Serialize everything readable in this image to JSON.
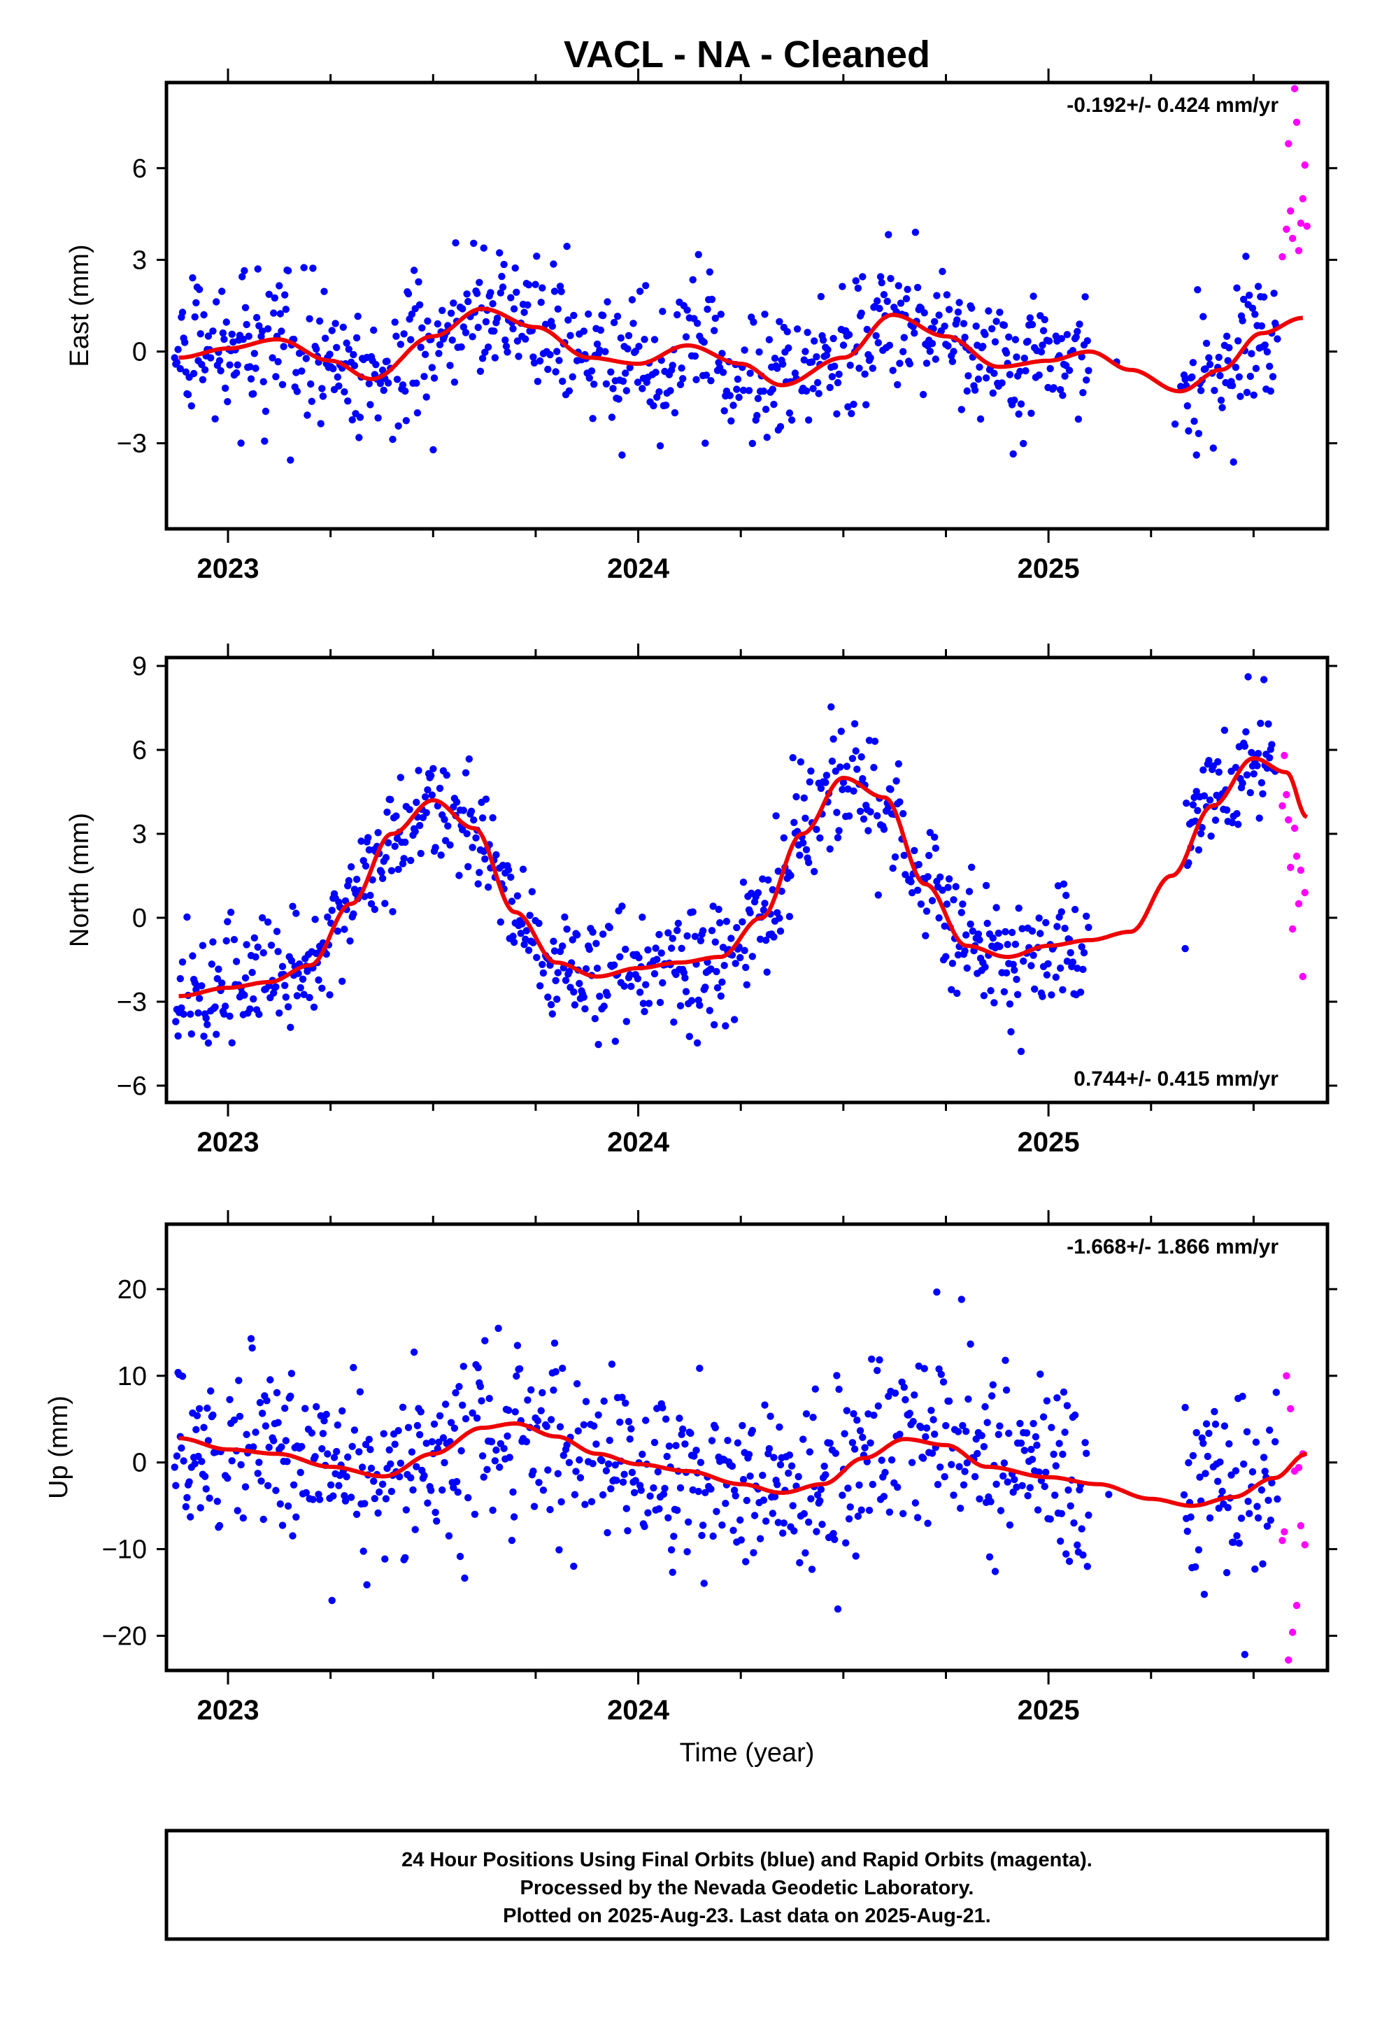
{
  "title": "VACL  - NA - Cleaned",
  "footer": {
    "lines": [
      "24 Hour Positions Using Final Orbits (blue) and Rapid Orbits (magenta).",
      "Processed by the Nevada Geodetic Laboratory.",
      "Plotted on 2025-Aug-23. Last data on 2025-Aug-21."
    ]
  },
  "colors": {
    "final": "#0000ff",
    "rapid": "#ff00ff",
    "fit": "#ee0000",
    "frame": "#000000"
  },
  "chart_data": [
    {
      "type": "scatter",
      "ylabel": "East (mm)",
      "xlabel": "",
      "rate_label": "-0.192+/- 0.424 mm/yr",
      "rate_position": "top-right",
      "xlim": [
        2022.85,
        2025.68
      ],
      "ylim": [
        -5.8,
        8.8
      ],
      "yticks": [
        -3,
        0,
        3,
        6
      ],
      "xticks": [
        2023,
        2024,
        2025
      ],
      "xtick_labels": [
        "2023",
        "2024",
        "2025"
      ],
      "fit": {
        "x": [
          2022.88,
          2023.0,
          2023.12,
          2023.25,
          2023.35,
          2023.5,
          2023.62,
          2023.75,
          2023.88,
          2024.0,
          2024.12,
          2024.25,
          2024.35,
          2024.5,
          2024.62,
          2024.75,
          2024.88,
          2025.0,
          2025.1,
          2025.2,
          2025.32,
          2025.42,
          2025.52,
          2025.62
        ],
        "y": [
          -0.2,
          0.1,
          0.4,
          -0.3,
          -0.9,
          0.5,
          1.4,
          0.8,
          -0.2,
          -0.4,
          0.2,
          -0.4,
          -1.1,
          -0.2,
          1.2,
          0.5,
          -0.5,
          -0.3,
          0.0,
          -0.6,
          -1.3,
          -0.6,
          0.6,
          1.1
        ]
      },
      "noise_sd": 1.1,
      "rapid": {
        "x": [
          2025.57,
          2025.58,
          2025.585,
          2025.59,
          2025.595,
          2025.6,
          2025.605,
          2025.61,
          2025.615,
          2025.62,
          2025.625,
          2025.63
        ],
        "y": [
          3.1,
          4.0,
          6.8,
          4.6,
          3.7,
          8.6,
          7.5,
          3.3,
          4.2,
          5.0,
          6.1,
          4.1
        ]
      }
    },
    {
      "type": "scatter",
      "ylabel": "North (mm)",
      "xlabel": "",
      "rate_label": "0.744+/- 0.415 mm/yr",
      "rate_position": "bottom-right",
      "xlim": [
        2022.85,
        2025.68
      ],
      "ylim": [
        -6.6,
        9.3
      ],
      "yticks": [
        -6,
        -3,
        0,
        3,
        6,
        9
      ],
      "xticks": [
        2023,
        2024,
        2025
      ],
      "xtick_labels": [
        "2023",
        "2024",
        "2025"
      ],
      "fit": {
        "x": [
          2022.88,
          2023.0,
          2023.1,
          2023.2,
          2023.3,
          2023.4,
          2023.5,
          2023.6,
          2023.7,
          2023.8,
          2023.9,
          2024.0,
          2024.1,
          2024.2,
          2024.3,
          2024.4,
          2024.5,
          2024.6,
          2024.7,
          2024.8,
          2024.9,
          2025.0,
          2025.1,
          2025.2,
          2025.3,
          2025.4,
          2025.5,
          2025.58,
          2025.63
        ],
        "y": [
          -2.8,
          -2.5,
          -2.3,
          -1.7,
          0.5,
          3.0,
          4.2,
          3.2,
          0.2,
          -1.6,
          -2.1,
          -1.8,
          -1.6,
          -1.4,
          0.0,
          3.0,
          5.0,
          4.3,
          1.2,
          -1.0,
          -1.4,
          -1.0,
          -0.8,
          -0.5,
          1.5,
          4.0,
          5.7,
          5.2,
          3.6
        ]
      },
      "noise_sd": 1.1,
      "rapid": {
        "x": [
          2025.57,
          2025.575,
          2025.58,
          2025.585,
          2025.59,
          2025.595,
          2025.6,
          2025.605,
          2025.61,
          2025.615,
          2025.62,
          2025.625
        ],
        "y": [
          4.0,
          5.8,
          4.4,
          3.5,
          1.8,
          -0.4,
          3.2,
          2.2,
          0.5,
          1.7,
          -2.1,
          0.9
        ]
      }
    },
    {
      "type": "scatter",
      "ylabel": "Up (mm)",
      "xlabel": "Time (year)",
      "rate_label": "-1.668+/- 1.866 mm/yr",
      "rate_position": "top-right",
      "xlim": [
        2022.85,
        2025.68
      ],
      "ylim": [
        -24.0,
        27.5
      ],
      "yticks": [
        -20,
        -10,
        0,
        10,
        20
      ],
      "xticks": [
        2023,
        2024,
        2025
      ],
      "xtick_labels": [
        "2023",
        "2024",
        "2025"
      ],
      "fit": {
        "x": [
          2022.88,
          2023.0,
          2023.12,
          2023.25,
          2023.38,
          2023.5,
          2023.62,
          2023.7,
          2023.8,
          2023.9,
          2024.0,
          2024.12,
          2024.25,
          2024.35,
          2024.45,
          2024.55,
          2024.65,
          2024.75,
          2024.85,
          2025.0,
          2025.12,
          2025.25,
          2025.35,
          2025.45,
          2025.55,
          2025.63
        ],
        "y": [
          2.8,
          1.5,
          1.0,
          -0.5,
          -1.6,
          1.0,
          4.0,
          4.5,
          3.0,
          1.0,
          -0.2,
          -1.0,
          -2.5,
          -3.5,
          -2.5,
          0.5,
          2.7,
          2.0,
          -0.5,
          -1.7,
          -2.5,
          -4.2,
          -5.0,
          -4.0,
          -1.8,
          1.0
        ]
      },
      "noise_sd": 5.4,
      "rapid": {
        "x": [
          2025.57,
          2025.575,
          2025.58,
          2025.585,
          2025.59,
          2025.595,
          2025.6,
          2025.605,
          2025.61,
          2025.615,
          2025.62,
          2025.625
        ],
        "y": [
          -9.0,
          -8.0,
          10.0,
          -22.8,
          6.2,
          -19.6,
          -1.0,
          -16.5,
          -0.6,
          -7.3,
          1.0,
          -9.5
        ]
      }
    }
  ]
}
